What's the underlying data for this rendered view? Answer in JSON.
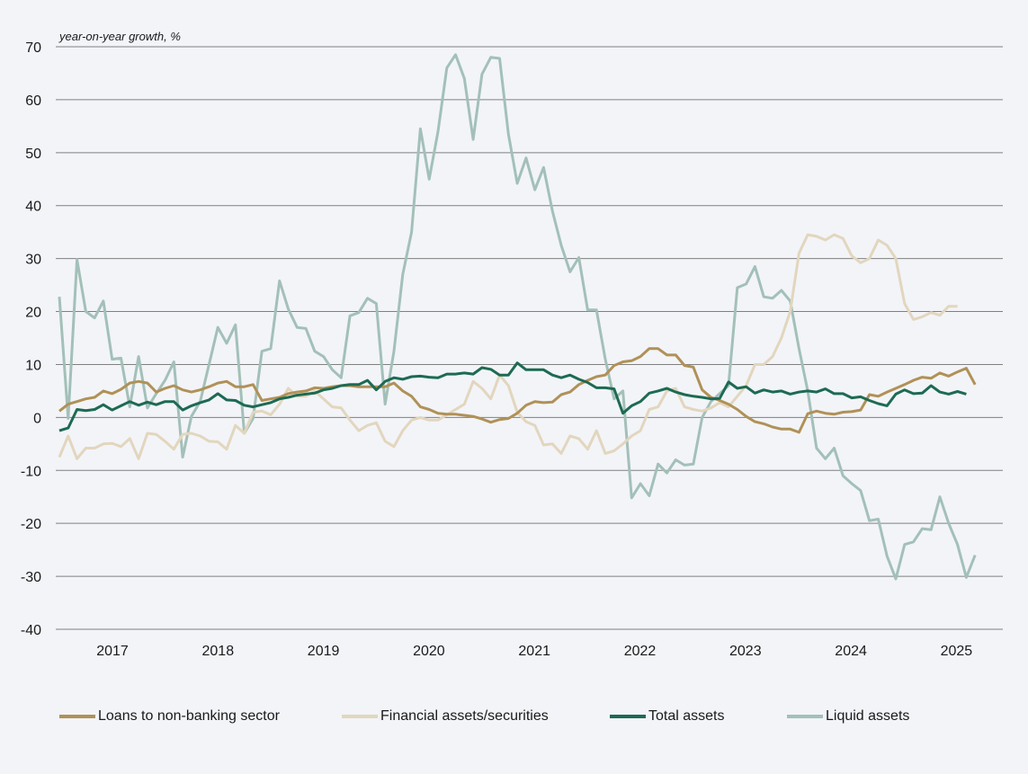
{
  "chart_data": {
    "type": "line",
    "title": "",
    "unit_label": "year-on-year growth, %",
    "xlabel": "",
    "ylabel": "year-on-year growth, %",
    "ylim": [
      -40,
      70
    ],
    "yticks": [
      70,
      60,
      50,
      40,
      30,
      20,
      10,
      0,
      -10,
      -20,
      -30,
      -40
    ],
    "grid": true,
    "legend_position": "bottom",
    "x_start": "2016-07",
    "x_frequency": "monthly",
    "xtick_labels": [
      "2017",
      "2018",
      "2019",
      "2020",
      "2021",
      "2022",
      "2023",
      "2024",
      "2025"
    ],
    "series": [
      {
        "name": "Loans to non-banking sector",
        "color": "#b09157",
        "values": [
          1.2,
          2.5,
          3.0,
          3.5,
          3.8,
          5.0,
          4.5,
          5.3,
          6.5,
          6.8,
          6.5,
          4.8,
          5.5,
          6.0,
          5.2,
          4.8,
          5.2,
          5.8,
          6.5,
          6.8,
          5.8,
          5.8,
          6.2,
          3.2,
          3.5,
          3.8,
          4.5,
          4.8,
          5.0,
          5.6,
          5.5,
          5.8,
          6.0,
          6.0,
          5.8,
          5.8,
          5.8,
          5.8,
          6.5,
          5.0,
          4.0,
          2.0,
          1.5,
          0.8,
          0.6,
          0.6,
          0.4,
          0.2,
          -0.3,
          -0.9,
          -0.4,
          -0.2,
          0.8,
          2.3,
          3.0,
          2.8,
          2.9,
          4.3,
          4.8,
          6.2,
          7.0,
          7.7,
          8.0,
          9.8,
          10.5,
          10.7,
          11.5,
          13.0,
          13.0,
          11.8,
          11.8,
          9.8,
          9.5,
          5.2,
          3.8,
          3.2,
          2.5,
          1.5,
          0.2,
          -0.8,
          -1.2,
          -1.8,
          -2.2,
          -2.2,
          -2.8,
          0.7,
          1.2,
          0.8,
          0.6,
          1.0,
          1.1,
          1.4,
          4.3,
          4.0,
          4.8,
          5.5,
          6.2,
          7.0,
          7.6,
          7.4,
          8.4,
          7.8,
          8.6,
          9.3,
          6.2
        ]
      },
      {
        "name": "Financial assets/securities",
        "color": "#e2d6bd",
        "values": [
          -7.5,
          -3.5,
          -7.8,
          -5.8,
          -5.8,
          -5.0,
          -4.9,
          -5.5,
          -4.0,
          -7.8,
          -3.0,
          -3.2,
          -4.5,
          -6.0,
          -3.2,
          -3.0,
          -3.5,
          -4.5,
          -4.6,
          -6.0,
          -1.5,
          -3.0,
          1.0,
          1.2,
          0.5,
          2.5,
          5.5,
          4.0,
          4.0,
          5.0,
          3.5,
          2.0,
          1.8,
          -0.5,
          -2.5,
          -1.5,
          -1.0,
          -4.5,
          -5.5,
          -2.5,
          -0.5,
          0.0,
          -0.5,
          -0.5,
          0.5,
          1.5,
          2.5,
          6.8,
          5.5,
          3.5,
          8.0,
          6.0,
          1.0,
          -0.8,
          -1.5,
          -5.2,
          -5.0,
          -6.8,
          -3.5,
          -4.0,
          -6.0,
          -2.5,
          -6.8,
          -6.3,
          -5.0,
          -3.5,
          -2.5,
          1.5,
          2.0,
          5.0,
          5.5,
          2.0,
          1.5,
          1.2,
          1.8,
          2.8,
          2.0,
          4.0,
          6.0,
          10.0,
          10.0,
          11.5,
          15.0,
          20.0,
          31.0,
          34.5,
          34.2,
          33.5,
          34.5,
          33.8,
          30.5,
          29.2,
          30.0,
          33.5,
          32.5,
          30.0,
          21.5,
          18.5,
          19.0,
          19.8,
          19.3,
          21.0,
          21.0
        ]
      },
      {
        "name": "Total assets",
        "color": "#1d6a52",
        "values": [
          -2.5,
          -2.0,
          1.5,
          1.3,
          1.5,
          2.4,
          1.4,
          2.2,
          3.0,
          2.3,
          2.9,
          2.4,
          3.0,
          3.0,
          1.4,
          2.2,
          2.8,
          3.3,
          4.5,
          3.3,
          3.2,
          2.3,
          2.0,
          2.4,
          2.8,
          3.5,
          3.8,
          4.2,
          4.4,
          4.6,
          5.2,
          5.5,
          6.0,
          6.2,
          6.2,
          7.0,
          5.2,
          6.8,
          7.5,
          7.2,
          7.7,
          7.8,
          7.6,
          7.5,
          8.2,
          8.2,
          8.4,
          8.2,
          9.4,
          9.1,
          8.0,
          8.0,
          10.3,
          9.0,
          9.0,
          9.0,
          8.0,
          7.5,
          8.0,
          7.2,
          6.6,
          5.6,
          5.6,
          5.4,
          0.8,
          2.2,
          3.0,
          4.6,
          5.0,
          5.5,
          4.8,
          4.3,
          4.0,
          3.8,
          3.5,
          3.6,
          6.7,
          5.5,
          5.8,
          4.6,
          5.2,
          4.8,
          5.0,
          4.4,
          4.8,
          5.0,
          4.8,
          5.4,
          4.5,
          4.5,
          3.7,
          3.9,
          3.2,
          2.6,
          2.2,
          4.4,
          5.2,
          4.5,
          4.6,
          6.0,
          4.8,
          4.4,
          4.9,
          4.4
        ]
      },
      {
        "name": "Liquid assets",
        "color": "#a3c0b8",
        "values": [
          22.8,
          -0.2,
          29.8,
          20.0,
          18.8,
          22.0,
          11.0,
          11.2,
          2.0,
          11.5,
          1.8,
          4.5,
          7.0,
          10.5,
          -7.5,
          0.2,
          3.0,
          10.0,
          17.0,
          14.0,
          17.5,
          -3.0,
          -0.2,
          12.5,
          13.0,
          25.8,
          20.5,
          17.0,
          16.8,
          12.5,
          11.5,
          9.0,
          7.5,
          19.2,
          19.8,
          22.5,
          21.5,
          2.5,
          12.5,
          27.0,
          35.0,
          54.5,
          45.0,
          54.0,
          66.0,
          68.5,
          64.0,
          52.5,
          64.8,
          68.0,
          67.8,
          53.5,
          44.2,
          49.0,
          43.0,
          47.2,
          39.0,
          32.5,
          27.5,
          30.2,
          20.3,
          20.3,
          11.0,
          3.5,
          5.0,
          -15.2,
          -12.5,
          -14.8,
          -8.8,
          -10.5,
          -8.0,
          -9.0,
          -8.8,
          0.0,
          3.0,
          4.5,
          6.0,
          24.5,
          25.2,
          28.5,
          22.8,
          22.5,
          24.0,
          22.0,
          13.0,
          5.0,
          -5.8,
          -7.8,
          -5.8,
          -11.0,
          -12.5,
          -13.8,
          -19.5,
          -19.2,
          -26.2,
          -30.5,
          -24.0,
          -23.5,
          -21.0,
          -21.2,
          -15.0,
          -20.0,
          -24.0,
          -30.2,
          -26.0
        ]
      }
    ]
  },
  "legend": {
    "items": [
      {
        "label": "Loans to non-banking sector",
        "color": "#b09157"
      },
      {
        "label": "Financial assets/securities",
        "color": "#e2d6bd"
      },
      {
        "label": "Total assets",
        "color": "#1d6a52"
      },
      {
        "label": "Liquid assets",
        "color": "#a3c0b8"
      }
    ]
  },
  "colors": {
    "background": "#f2f4f8",
    "grid": "#808080"
  }
}
